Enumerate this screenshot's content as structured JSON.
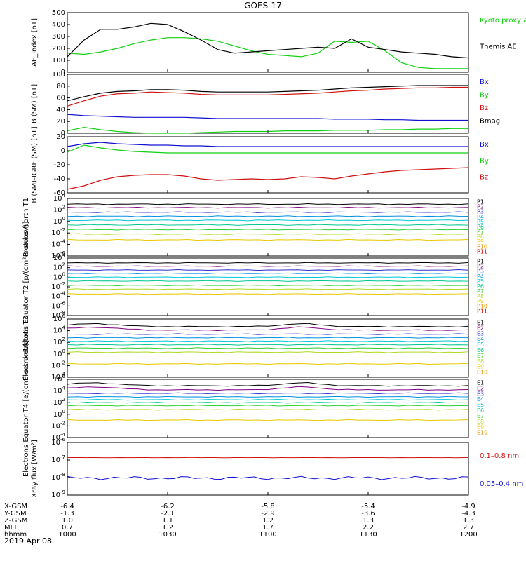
{
  "title": "GOES-17",
  "date": "2019 Apr 08",
  "colors": {
    "black": "#000000",
    "red": "#d01010",
    "green": "#10d010",
    "blue": "#1010d0",
    "P": [
      "#000000",
      "#800080",
      "#3030d0",
      "#0090e0",
      "#00c8d8",
      "#00c890",
      "#30d030",
      "#b0d820",
      "#e8c800",
      "#e89000",
      "#d80000",
      "#a00000"
    ],
    "E": [
      "#000000",
      "#800080",
      "#3030d0",
      "#0090e0",
      "#00c8d8",
      "#00c890",
      "#30d030",
      "#b0d820",
      "#e8c800",
      "#e89000",
      "#d80000",
      "#a00000"
    ]
  },
  "x_axis": {
    "rows": [
      {
        "label": "X-GSM",
        "values": [
          "-6.4",
          "-6.2",
          "-5.8",
          "-5.4",
          "-4.9"
        ]
      },
      {
        "label": "Y-GSM",
        "values": [
          "-1.3",
          "-2.1",
          "-2.9",
          "-3.6",
          "-4.3"
        ]
      },
      {
        "label": "Z-GSM",
        "values": [
          "1.0",
          "1.1",
          "1.2",
          "1.3",
          "1.3"
        ]
      },
      {
        "label": "MLT",
        "values": [
          "0.7",
          "1.2",
          "1.7",
          "2.2",
          "2.7"
        ]
      },
      {
        "label": "hhmm",
        "values": [
          "1000",
          "1030",
          "1100",
          "1130",
          "1200"
        ]
      }
    ]
  },
  "chart_data": [
    {
      "type": "line",
      "ylabel": "AE_index [nT]",
      "ylim": [
        0,
        500
      ],
      "yticks": [
        "0",
        "100",
        "200",
        "300",
        "400",
        "500"
      ],
      "x": [
        0,
        5,
        10,
        15,
        20,
        25,
        30,
        35,
        40,
        45,
        50,
        55,
        60,
        65,
        70,
        75,
        80,
        85,
        90,
        95,
        100,
        105,
        110,
        115,
        120
      ],
      "series": [
        {
          "name": "Kyoto proxy AE",
          "color": "#10d010",
          "values": [
            160,
            150,
            170,
            200,
            240,
            270,
            290,
            290,
            280,
            260,
            220,
            180,
            150,
            140,
            130,
            160,
            260,
            250,
            260,
            180,
            80,
            40,
            30,
            30,
            30
          ]
        },
        {
          "name": "Themis AE",
          "color": "#000000",
          "values": [
            130,
            270,
            360,
            360,
            380,
            410,
            400,
            340,
            270,
            190,
            160,
            170,
            180,
            190,
            200,
            210,
            200,
            280,
            210,
            190,
            170,
            160,
            150,
            130,
            120
          ]
        }
      ]
    },
    {
      "type": "line",
      "ylabel": "B (SM) [nT]",
      "ylim": [
        0,
        100
      ],
      "yticks": [
        "0",
        "20",
        "40",
        "60",
        "80",
        "100"
      ],
      "x": [
        0,
        5,
        10,
        15,
        20,
        25,
        30,
        35,
        40,
        45,
        50,
        55,
        60,
        65,
        70,
        75,
        80,
        85,
        90,
        95,
        100,
        105,
        110,
        115,
        120
      ],
      "series": [
        {
          "name": "Bx",
          "color": "#1010d0",
          "values": [
            32,
            30,
            29,
            28,
            27,
            27,
            27,
            27,
            26,
            25,
            25,
            25,
            25,
            25,
            25,
            25,
            24,
            24,
            24,
            23,
            23,
            22,
            22,
            22,
            22
          ]
        },
        {
          "name": "By",
          "color": "#10d010",
          "values": [
            4,
            10,
            6,
            3,
            1,
            0,
            0,
            0,
            1,
            2,
            3,
            3,
            3,
            4,
            4,
            4,
            5,
            5,
            5,
            6,
            6,
            7,
            7,
            8,
            8
          ]
        },
        {
          "name": "Bz",
          "color": "#d01010",
          "values": [
            46,
            55,
            63,
            67,
            68,
            70,
            69,
            68,
            66,
            65,
            65,
            65,
            65,
            66,
            67,
            68,
            70,
            72,
            73,
            75,
            76,
            77,
            77,
            78,
            78
          ]
        },
        {
          "name": "Bmag",
          "color": "#000000",
          "values": [
            55,
            62,
            68,
            71,
            72,
            74,
            74,
            73,
            71,
            70,
            70,
            70,
            70,
            71,
            72,
            73,
            75,
            77,
            78,
            79,
            80,
            81,
            81,
            81,
            81
          ]
        }
      ]
    },
    {
      "type": "line",
      "ylabel": "B (SM)-IGRF (SM) [nT]",
      "ylim": [
        -60,
        20
      ],
      "yticks": [
        "-60",
        "-40",
        "-20",
        "0",
        "20"
      ],
      "x": [
        0,
        5,
        10,
        15,
        20,
        25,
        30,
        35,
        40,
        45,
        50,
        55,
        60,
        65,
        70,
        75,
        80,
        85,
        90,
        95,
        100,
        105,
        110,
        115,
        120
      ],
      "series": [
        {
          "name": "Bx",
          "color": "#1010d0",
          "values": [
            6,
            10,
            12,
            10,
            9,
            8,
            8,
            7,
            7,
            6,
            6,
            6,
            6,
            6,
            6,
            6,
            6,
            6,
            6,
            6,
            6,
            6,
            6,
            6,
            6
          ]
        },
        {
          "name": "By",
          "color": "#10d010",
          "values": [
            -2,
            8,
            4,
            1,
            -1,
            -2,
            -3,
            -3,
            -3,
            -3,
            -3,
            -3,
            -3,
            -3,
            -3,
            -3,
            -3,
            -3,
            -3,
            -3,
            -3,
            -3,
            -3,
            -3,
            -3
          ]
        },
        {
          "name": "Bz",
          "color": "#d01010",
          "values": [
            -55,
            -50,
            -42,
            -37,
            -35,
            -34,
            -34,
            -36,
            -40,
            -42,
            -41,
            -40,
            -41,
            -40,
            -37,
            -38,
            -40,
            -36,
            -33,
            -30,
            -28,
            -27,
            -26,
            -25,
            -24
          ]
        }
      ]
    },
    {
      "type": "line",
      "ylabel": "Protons North T1",
      "ylim": [
        -6,
        4
      ],
      "yscale": "log",
      "yticks": [
        "10^-6",
        "10^-4",
        "10^-2",
        "10^0",
        "10^2",
        "10^4"
      ],
      "channels": [
        "P1",
        "P2",
        "P3",
        "P4",
        "P5",
        "P6",
        "P7",
        "P8",
        "P9",
        "P10",
        "P11"
      ],
      "log_levels": [
        3.0,
        2.4,
        1.6,
        0.9,
        0.2,
        -0.6,
        -1.4,
        -2.2,
        -3.2,
        null,
        null
      ]
    },
    {
      "type": "line",
      "ylabel": "Protons Equator T2 [p/(cm²-s-sr-keV)]",
      "ylim": [
        -8,
        4
      ],
      "yscale": "log",
      "yticks": [
        "10^-8",
        "10^-6",
        "10^-4",
        "10^-2",
        "10^0",
        "10^2",
        "10^4"
      ],
      "channels": [
        "P1",
        "P2",
        "P3",
        "P4",
        "P5",
        "P6",
        "P7",
        "P8",
        "P9",
        "P10",
        "P11"
      ],
      "log_levels": [
        3.0,
        2.3,
        1.5,
        0.8,
        0.0,
        -0.8,
        -1.7,
        -2.5,
        -3.5,
        null,
        null
      ]
    },
    {
      "type": "line",
      "ylabel": "Electrons North T3",
      "ylim": [
        -4,
        6
      ],
      "yscale": "log",
      "yticks": [
        "10^-4",
        "10^-2",
        "10^0",
        "10^2",
        "10^4",
        "10^6"
      ],
      "channels": [
        "E1",
        "E2",
        "E3",
        "E4",
        "E5",
        "E6",
        "E7",
        "E8",
        "E9",
        "E10"
      ],
      "log_levels": [
        4.7,
        4.1,
        3.4,
        2.8,
        2.2,
        1.6,
        1.0,
        0.3,
        -1.7,
        null
      ]
    },
    {
      "type": "line",
      "ylabel": "Electrons Equator T4 [e/(cm²-s-sr-keV)]",
      "ylim": [
        -4,
        6
      ],
      "yscale": "log",
      "yticks": [
        "10^-4",
        "10^-2",
        "10^0",
        "10^2",
        "10^4",
        "10^6"
      ],
      "channels": [
        "E1",
        "E2",
        "E3",
        "E4",
        "E5",
        "E6",
        "E7",
        "E8",
        "E9",
        "E10"
      ],
      "log_levels": [
        4.9,
        4.2,
        3.6,
        3.0,
        2.5,
        2.0,
        1.5,
        0.8,
        -1.0,
        null
      ]
    },
    {
      "type": "line",
      "ylabel": "Xray flux [W/m²]",
      "ylim": [
        -9,
        -8
      ],
      "yscale": "log",
      "yticks": [
        "10^-9",
        "10^-8",
        "10^-7",
        "10^-6"
      ],
      "series": [
        {
          "name": "0.1–0.8 nm",
          "color": "#d01010",
          "log_level": -7.15
        },
        {
          "name": "0.05–0.4 nm",
          "color": "#1010d0",
          "log_level": -8.7
        }
      ]
    }
  ]
}
